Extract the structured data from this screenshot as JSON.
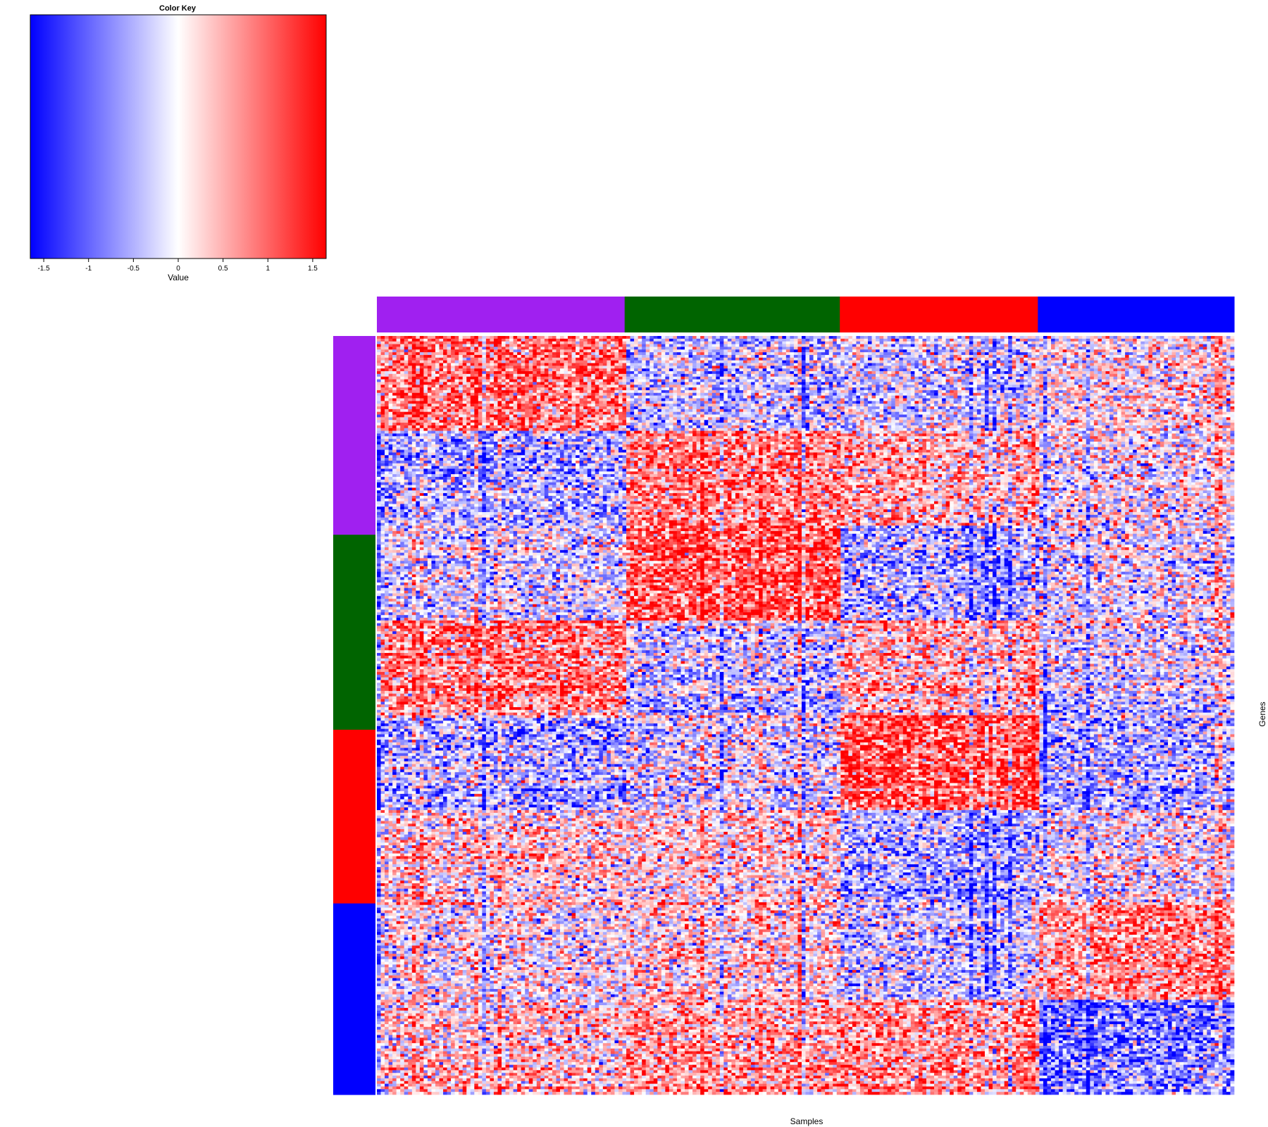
{
  "chart_data": {
    "type": "heatmap",
    "title": "",
    "xlabel": "Samples",
    "ylabel": "Genes",
    "color_key": {
      "title": "Color Key",
      "label": "Value",
      "range": [
        -1.65,
        1.65
      ],
      "ticks": [
        "-1.5",
        "-1",
        "-0.5",
        "0",
        "0.5",
        "1",
        "1.5"
      ],
      "tick_values": [
        -1.5,
        -1,
        -0.5,
        0,
        0.5,
        1,
        1.5
      ],
      "low_color": "#0000ff",
      "mid_color": "#ffffff",
      "high_color": "#ff0000"
    },
    "sample_groups": [
      {
        "name": "purple",
        "color": "#a020f0",
        "fraction": 0.289
      },
      {
        "name": "green",
        "color": "#006400",
        "fraction": 0.251
      },
      {
        "name": "red",
        "color": "#ff0000",
        "fraction": 0.231
      },
      {
        "name": "blue",
        "color": "#0000ff",
        "fraction": 0.229
      }
    ],
    "gene_groups": [
      {
        "name": "purple",
        "color": "#a020f0",
        "fraction": 0.262
      },
      {
        "name": "green",
        "color": "#006400",
        "fraction": 0.257
      },
      {
        "name": "red",
        "color": "#ff0000",
        "fraction": 0.229
      },
      {
        "name": "blue",
        "color": "#0000ff",
        "fraction": 0.252
      }
    ],
    "block_means": [
      [
        0.9,
        -0.3,
        -0.2,
        0.1
      ],
      [
        -0.5,
        0.8,
        0.5,
        0.0
      ],
      [
        -0.2,
        1.1,
        -0.5,
        -0.1
      ],
      [
        0.7,
        -0.4,
        0.4,
        -0.3
      ],
      [
        -0.5,
        -0.2,
        1.1,
        -0.5
      ],
      [
        0.2,
        0.2,
        -0.5,
        0.0
      ],
      [
        0.0,
        0.2,
        -0.3,
        0.7
      ],
      [
        0.3,
        0.6,
        0.7,
        -0.8
      ]
    ]
  }
}
